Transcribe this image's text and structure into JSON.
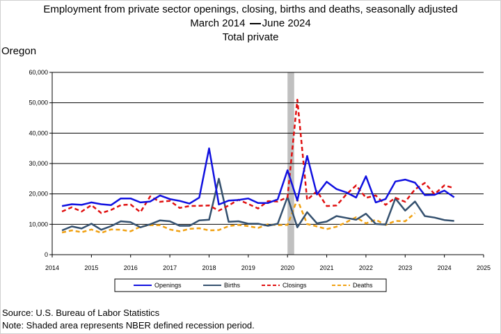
{
  "header": {
    "title_line1": "Employment from private sector openings, closing, births and deaths, seasonally adjusted",
    "title_line2_start": "March 2014",
    "title_line2_end": "June 2024",
    "title_line3": "Total private"
  },
  "region": "Oregon",
  "footer": {
    "source": "Source: U.S. Bureau of Labor Statistics",
    "note": "Note: Shaded area represents NBER defined recession period."
  },
  "colors": {
    "openings": "#1010e0",
    "births": "#34506e",
    "closings": "#e01010",
    "deaths": "#f0a010",
    "recession": "#c0c0c0",
    "gridline": "#000000"
  },
  "chart_data": {
    "type": "line",
    "xlim": [
      2014,
      2025
    ],
    "ylim": [
      0,
      60000
    ],
    "x_ticks": [
      "2014",
      "2015",
      "2016",
      "2017",
      "2018",
      "2019",
      "2020",
      "2021",
      "2022",
      "2023",
      "2024",
      "2025"
    ],
    "y_ticks": [
      "0",
      "10,000",
      "20,000",
      "30,000",
      "40,000",
      "50,000",
      "60,000"
    ],
    "recession": [
      2020.0,
      2020.17
    ],
    "grid": "horizontal",
    "legend_position": "bottom",
    "x": [
      2014.25,
      2014.5,
      2014.75,
      2015.0,
      2015.25,
      2015.5,
      2015.75,
      2016.0,
      2016.25,
      2016.5,
      2016.75,
      2017.0,
      2017.25,
      2017.5,
      2017.75,
      2018.0,
      2018.25,
      2018.5,
      2018.75,
      2019.0,
      2019.25,
      2019.5,
      2019.75,
      2020.0,
      2020.25,
      2020.5,
      2020.75,
      2021.0,
      2021.25,
      2021.5,
      2021.75,
      2022.0,
      2022.25,
      2022.5,
      2022.75,
      2023.0,
      2023.25,
      2023.5,
      2023.75,
      2024.0,
      2024.25
    ],
    "series": [
      {
        "name": "Openings",
        "style": "solid",
        "values": [
          16000,
          16600,
          16400,
          17200,
          16600,
          16300,
          18500,
          18500,
          17200,
          17500,
          19500,
          18300,
          17700,
          16800,
          18800,
          35000,
          16500,
          17800,
          18000,
          18500,
          17000,
          17000,
          18200,
          27800,
          17800,
          32500,
          19800,
          24000,
          21600,
          20500,
          18800,
          25800,
          17200,
          18300,
          24100,
          24700,
          23700,
          19600,
          19700,
          21100,
          18900
        ]
      },
      {
        "name": "Births",
        "style": "solid",
        "values": [
          8000,
          9300,
          8600,
          10200,
          8200,
          9400,
          11000,
          10700,
          9000,
          10000,
          11300,
          11000,
          9500,
          9500,
          11300,
          11500,
          25000,
          10800,
          11000,
          10200,
          10200,
          9500,
          10200,
          19000,
          9000,
          14000,
          10300,
          10900,
          12700,
          12100,
          11500,
          13500,
          10100,
          9900,
          18500,
          14500,
          17500,
          12700,
          12200,
          11400,
          11100
        ]
      },
      {
        "name": "Closings",
        "style": "dashed",
        "values": [
          14200,
          15600,
          14200,
          16300,
          13700,
          14700,
          16300,
          16500,
          14000,
          19200,
          17400,
          17700,
          15400,
          16000,
          16100,
          16200,
          14500,
          16200,
          18100,
          16700,
          15200,
          17600,
          17500,
          18900,
          51000,
          18000,
          20900,
          16000,
          16200,
          19800,
          22800,
          18700,
          19500,
          16400,
          18700,
          17400,
          21500,
          23600,
          19900,
          22800,
          21900
        ]
      },
      {
        "name": "Deaths",
        "style": "dashed",
        "values": [
          7300,
          8000,
          7400,
          8300,
          7200,
          8300,
          8200,
          7700,
          9200,
          9700,
          9700,
          8300,
          7700,
          8500,
          8700,
          8000,
          8100,
          9400,
          9800,
          9400,
          8800,
          10000,
          9700,
          9800,
          18200,
          10100,
          9300,
          8400,
          9200,
          10700,
          12300,
          10300,
          11500,
          9800,
          11100,
          11000,
          13700,
          null,
          null,
          null,
          null
        ]
      }
    ]
  }
}
